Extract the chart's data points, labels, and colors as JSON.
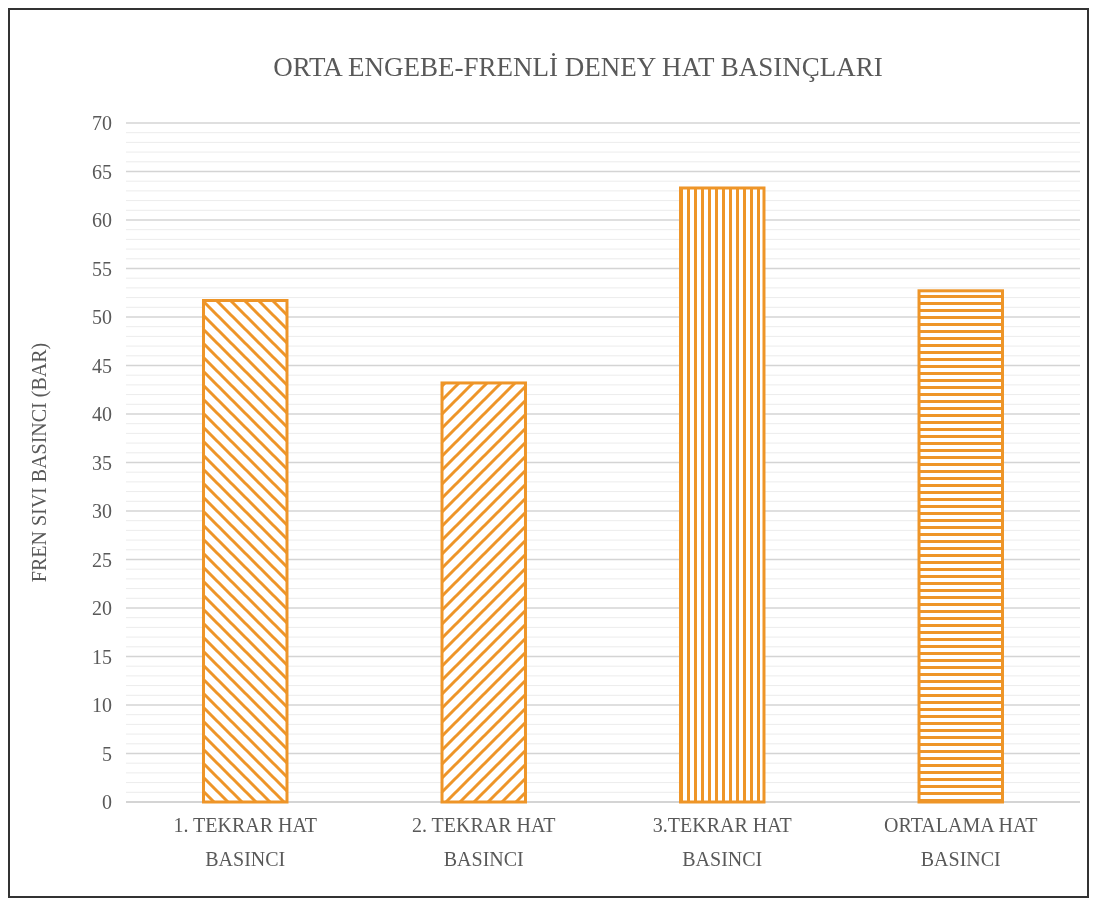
{
  "chart_data": {
    "type": "bar",
    "title": "ORTA ENGEBE-FRENLİ DENEY HAT BASINÇLARI",
    "ylabel": "FREN SIVI BASINCI (BAR)",
    "categories": [
      "1. TEKRAR HAT BASINCI",
      "2. TEKRAR HAT BASINCI",
      "3.TEKRAR HAT BASINCI",
      "ORTALAMA HAT BASINCI"
    ],
    "values": [
      51.7,
      43.2,
      63.3,
      52.7
    ],
    "color": "#ee9528",
    "ylim": [
      0,
      70
    ],
    "yticks": [
      0,
      {
        "value": 1,
        "label": null
      },
      {
        "value": 2,
        "label": null
      },
      {
        "value": 3,
        "label": null
      },
      {
        "value": 4,
        "label": null
      },
      5,
      {
        "value": 6,
        "label": null
      },
      {
        "value": 7,
        "label": null
      },
      {
        "value": 8,
        "label": null
      },
      {
        "value": 9,
        "label": null
      },
      10,
      {
        "value": 11,
        "label": null
      },
      {
        "value": 12,
        "label": null
      },
      {
        "value": 13,
        "label": null
      },
      {
        "value": 14,
        "label": null
      },
      15,
      {
        "value": 16,
        "label": null
      },
      {
        "value": 17,
        "label": null
      },
      {
        "value": 18,
        "label": null
      },
      {
        "value": 19,
        "label": null
      },
      20,
      {
        "value": 21,
        "label": null
      },
      {
        "value": 22,
        "label": null
      },
      {
        "value": 23,
        "label": null
      },
      {
        "value": 24,
        "label": null
      },
      25,
      {
        "value": 26,
        "label": null
      },
      {
        "value": 27,
        "label": null
      },
      {
        "value": 28,
        "label": null
      },
      {
        "value": 29,
        "label": null
      },
      30,
      {
        "value": 31,
        "label": null
      },
      {
        "value": 32,
        "label": null
      },
      {
        "value": 33,
        "label": null
      },
      {
        "value": 34,
        "label": null
      },
      35,
      {
        "value": 36,
        "label": null
      },
      {
        "value": 37,
        "label": null
      },
      {
        "value": 38,
        "label": null
      },
      {
        "value": 39,
        "label": null
      },
      40,
      {
        "value": 41,
        "label": null
      },
      {
        "value": 42,
        "label": null
      },
      {
        "value": 43,
        "label": null
      },
      {
        "value": 44,
        "label": null
      },
      45,
      {
        "value": 46,
        "label": null
      },
      {
        "value": 47,
        "label": null
      },
      {
        "value": 48,
        "label": null
      },
      {
        "value": 49,
        "label": null
      },
      50,
      {
        "value": 51,
        "label": null
      },
      {
        "value": 52,
        "label": null
      },
      {
        "value": 53,
        "label": null
      },
      {
        "value": 54,
        "label": null
      },
      55,
      {
        "value": 56,
        "label": null
      },
      {
        "value": 57,
        "label": null
      },
      {
        "value": 58,
        "label": null
      },
      {
        "value": 59,
        "label": null
      },
      60,
      {
        "value": 61,
        "label": null
      },
      {
        "value": 62,
        "label": null
      },
      {
        "value": 63,
        "label": null
      },
      {
        "value": 64,
        "label": null
      },
      65,
      {
        "value": 66,
        "label": null
      },
      {
        "value": 67,
        "label": null
      },
      {
        "value": 68,
        "label": null
      },
      {
        "value": 69,
        "label": null
      },
      70
    ],
    "grid": "y"
  }
}
